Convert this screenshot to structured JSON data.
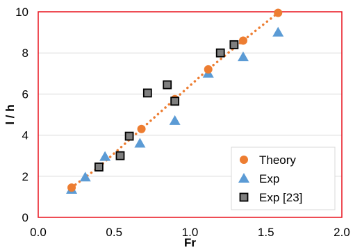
{
  "chart_data": {
    "type": "scatter",
    "xlabel": "Fr",
    "ylabel": "l / h",
    "xlim": [
      0,
      2
    ],
    "ylim": [
      0,
      10
    ],
    "xticks": [
      "0.0",
      "0.5",
      "1.0",
      "1.5",
      "2.0"
    ],
    "yticks": [
      "0",
      "2",
      "4",
      "6",
      "8",
      "10"
    ],
    "grid": "horizontal",
    "legend_position": "bottom-right",
    "series": [
      {
        "name": "Theory",
        "marker": "circle",
        "color": "#ED7D31",
        "trendline": "dotted",
        "x": [
          0.22,
          0.4,
          0.68,
          0.9,
          1.12,
          1.35,
          1.58
        ],
        "y": [
          1.45,
          2.45,
          4.3,
          5.75,
          7.2,
          8.6,
          9.95
        ]
      },
      {
        "name": "Exp",
        "marker": "triangle",
        "color": "#5B9BD5",
        "x": [
          0.22,
          0.31,
          0.44,
          0.67,
          0.9,
          1.12,
          1.35,
          1.58
        ],
        "y": [
          1.35,
          1.95,
          2.95,
          3.6,
          4.7,
          7.0,
          7.8,
          9.0
        ]
      },
      {
        "name": "Exp [23]",
        "marker": "square",
        "color": "#404040",
        "x": [
          0.4,
          0.54,
          0.6,
          0.72,
          0.85,
          0.9,
          1.2,
          1.29
        ],
        "y": [
          2.45,
          3.0,
          3.95,
          6.05,
          6.45,
          5.65,
          8.0,
          8.4
        ]
      }
    ]
  }
}
